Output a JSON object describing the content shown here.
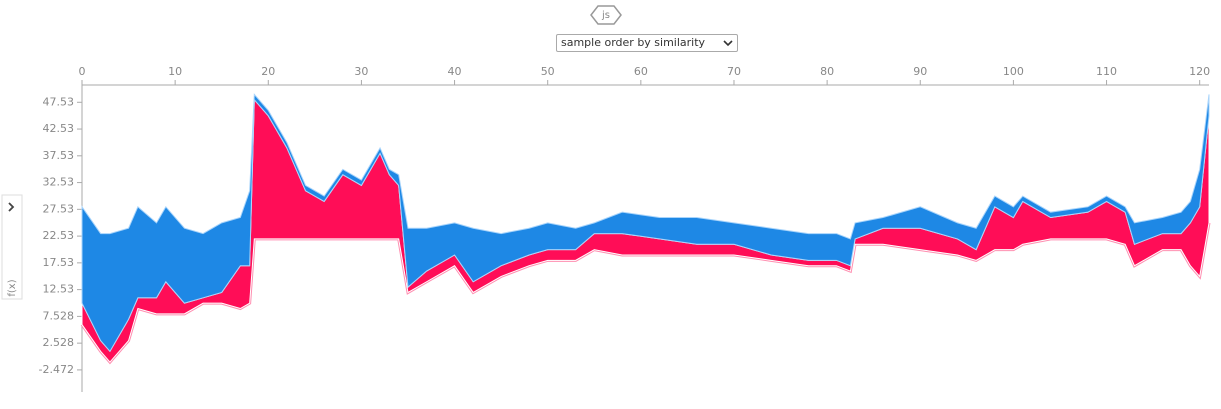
{
  "ui": {
    "badge": "js",
    "order_select": "sample order by similarity",
    "side_label": "f(x)"
  },
  "chart_data": {
    "type": "force",
    "x": [
      0,
      2,
      3,
      5,
      6,
      8,
      9,
      11,
      13,
      15,
      17,
      18,
      18.5,
      20,
      22,
      24,
      26,
      28,
      30,
      32,
      33,
      34,
      35,
      37,
      40,
      42,
      45,
      48,
      50,
      53,
      55,
      58,
      62,
      66,
      70,
      74,
      78,
      81,
      82.5,
      83,
      86,
      90,
      94,
      96,
      98,
      100,
      101,
      104,
      108,
      110,
      112,
      113,
      116,
      118,
      119,
      120,
      121
    ],
    "series": [
      {
        "color": "#ff8fb1",
        "values": [
          6,
          1,
          -1,
          3,
          9,
          8,
          8,
          8,
          10,
          10,
          9,
          10,
          22,
          22,
          22,
          22,
          22,
          22,
          22,
          22,
          22,
          22,
          12,
          14,
          17,
          12,
          15,
          17,
          18,
          18,
          20,
          19,
          19,
          19,
          19,
          18,
          17,
          17,
          16,
          21,
          21,
          20,
          19,
          18,
          20,
          20,
          21,
          22,
          22,
          22,
          21,
          17,
          20,
          20,
          17,
          15,
          25
        ]
      },
      {
        "color": "#ff0d57",
        "values": [
          4,
          2,
          2,
          4,
          2,
          3,
          6,
          2,
          1,
          2,
          8,
          7,
          26,
          23,
          17,
          9,
          7,
          12,
          10,
          16,
          12,
          10,
          1,
          2,
          2,
          2,
          2,
          2,
          2,
          2,
          3,
          4,
          3,
          2,
          2,
          1,
          1,
          1,
          1,
          1,
          3,
          4,
          3,
          2,
          8,
          6,
          8,
          4,
          5,
          7,
          6,
          4,
          3,
          3,
          8,
          13,
          20
        ]
      },
      {
        "color": "#1e88e5",
        "values": [
          18,
          20,
          22,
          17,
          17,
          14,
          14,
          14,
          12,
          13,
          9,
          14,
          1,
          1,
          1,
          1,
          1,
          1,
          1,
          1,
          1,
          2,
          11,
          8,
          6,
          10,
          6,
          5,
          5,
          4,
          2,
          4,
          4,
          5,
          4,
          5,
          5,
          5,
          5,
          3,
          2,
          4,
          3,
          4,
          2,
          2,
          1,
          1,
          1,
          1,
          1,
          4,
          3,
          4,
          4,
          7,
          4
        ]
      }
    ],
    "xlim": [
      0,
      121
    ],
    "xticks": [
      0,
      10,
      20,
      30,
      40,
      50,
      60,
      70,
      80,
      90,
      100,
      110,
      120
    ],
    "ylim": [
      -6.6,
      50.2
    ],
    "yticks": [
      -2.472,
      2.528,
      7.528,
      12.53,
      17.53,
      22.53,
      27.53,
      32.53,
      37.53,
      42.53,
      47.53
    ]
  }
}
